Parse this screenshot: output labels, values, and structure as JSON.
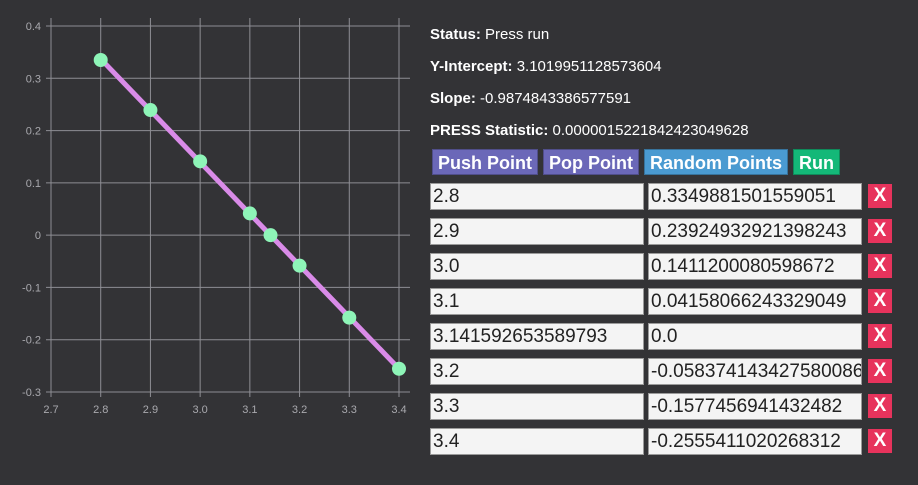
{
  "status": {
    "label": "Status:",
    "value": "Press run"
  },
  "intercept": {
    "label": "Y-Intercept:",
    "value": "3.1019951128573604"
  },
  "slope": {
    "label": "Slope:",
    "value": "-0.9874843386577591"
  },
  "press": {
    "label": "PRESS Statistic:",
    "value": "0.0000015221842423049628"
  },
  "buttons": {
    "push": "Push Point",
    "pop": "Pop Point",
    "random": "Random Points",
    "run": "Run"
  },
  "points": [
    {
      "x": "2.8",
      "y": "0.3349881501559051"
    },
    {
      "x": "2.9",
      "y": "0.23924932921398243"
    },
    {
      "x": "3.0",
      "y": "0.1411200080598672"
    },
    {
      "x": "3.1",
      "y": "0.04158066243329049"
    },
    {
      "x": "3.141592653589793",
      "y": "0.0"
    },
    {
      "x": "3.2",
      "y": "-0.058374143427580086"
    },
    {
      "x": "3.3",
      "y": "-0.1577456941432482"
    },
    {
      "x": "3.4",
      "y": "-0.2555411020268312"
    }
  ],
  "delete_label": "X",
  "colors": {
    "background": "#333336",
    "line": "#d98be8",
    "point": "#8ef5b8",
    "delete": "#e7335c"
  },
  "chart_data": {
    "type": "scatter",
    "x": [
      2.8,
      2.9,
      3.0,
      3.1,
      3.141592653589793,
      3.2,
      3.3,
      3.4
    ],
    "y": [
      0.3349881501559051,
      0.23924932921398243,
      0.1411200080598672,
      0.04158066243329049,
      0.0,
      -0.058374143427580086,
      -0.1577456941432482,
      -0.2555411020268312
    ],
    "fit_line": {
      "x": [
        2.8,
        3.4
      ],
      "y": [
        0.337,
        -0.2555
      ]
    },
    "xticks": [
      "2.7",
      "2.8",
      "2.9",
      "3.0",
      "3.1",
      "3.2",
      "3.3",
      "3.4"
    ],
    "yticks": [
      "0.4",
      "0.3",
      "0.2",
      "0.1",
      "0",
      "-0.1",
      "-0.2",
      "-0.3"
    ],
    "xlim": [
      2.7,
      3.4
    ],
    "ylim": [
      -0.3,
      0.4
    ],
    "grid": true
  }
}
